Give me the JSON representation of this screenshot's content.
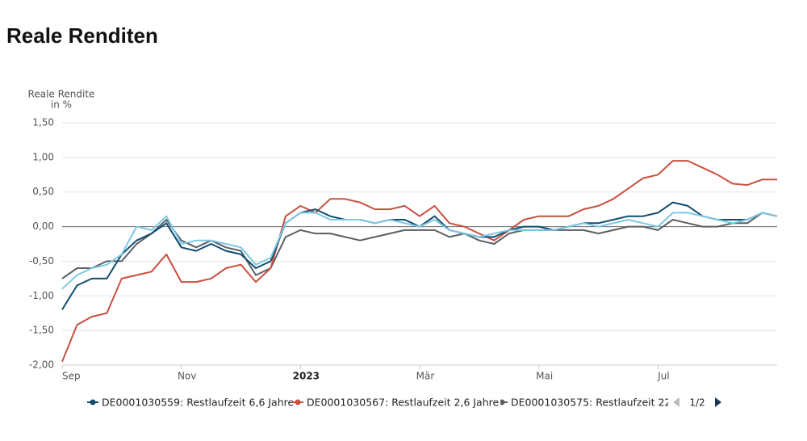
{
  "chart_data": {
    "type": "line",
    "title": "Reale Renditen",
    "ylabel": [
      "Reale Rendite",
      "in %"
    ],
    "categories": [
      "Sep",
      null,
      null,
      null,
      null,
      null,
      null,
      null,
      "Nov",
      null,
      null,
      null,
      null,
      null,
      null,
      null,
      "2023",
      null,
      null,
      null,
      null,
      null,
      null,
      null,
      "Mär",
      null,
      null,
      null,
      null,
      null,
      null,
      null,
      "Mai",
      null,
      null,
      null,
      null,
      null,
      null,
      null,
      "Jul",
      null,
      null,
      null,
      null,
      null,
      null,
      null,
      null
    ],
    "series": [
      {
        "name": "DE0001030559: Restlaufzeit 6,6 Jahre",
        "color": "#0f4c6e",
        "values": [
          -1.2,
          -0.85,
          -0.75,
          -0.75,
          -0.4,
          -0.2,
          -0.1,
          0.05,
          -0.3,
          -0.35,
          -0.25,
          -0.35,
          -0.4,
          -0.6,
          -0.5,
          0.05,
          0.2,
          0.25,
          0.15,
          0.1,
          0.1,
          0.05,
          0.1,
          0.1,
          0.0,
          0.15,
          -0.05,
          -0.1,
          -0.15,
          -0.15,
          -0.05,
          0.0,
          0.0,
          -0.05,
          0.0,
          0.05,
          0.05,
          0.1,
          0.15,
          0.15,
          0.2,
          0.35,
          0.3,
          0.15,
          0.1,
          0.1,
          0.1,
          0.2,
          0.15
        ]
      },
      {
        "name": "DE0001030567: Restlaufzeit 2,6 Jahre",
        "color": "#c8503f",
        "values": [
          -1.95,
          -1.42,
          -1.3,
          -1.25,
          -0.75,
          -0.7,
          -0.65,
          -0.4,
          -0.8,
          -0.8,
          -0.75,
          -0.6,
          -0.55,
          -0.8,
          -0.6,
          0.15,
          0.3,
          0.2,
          0.4,
          0.4,
          0.35,
          0.25,
          0.25,
          0.3,
          0.15,
          0.3,
          0.05,
          0.0,
          -0.1,
          -0.2,
          -0.05,
          0.1,
          0.15,
          0.15,
          0.15,
          0.25,
          0.3,
          0.4,
          0.55,
          0.7,
          0.75,
          0.95,
          0.95,
          0.85,
          0.75,
          0.62,
          0.6,
          0.68,
          0.68
        ]
      },
      {
        "name": "DE0001030575: Restlaufzeit 22,",
        "color": "#5a6064",
        "values": [
          -0.75,
          -0.6,
          -0.6,
          -0.5,
          -0.5,
          -0.25,
          -0.1,
          0.1,
          -0.2,
          -0.3,
          -0.2,
          -0.3,
          -0.35,
          -0.7,
          -0.6,
          -0.15,
          -0.05,
          -0.1,
          -0.1,
          -0.15,
          -0.2,
          -0.15,
          -0.1,
          -0.05,
          -0.05,
          -0.05,
          -0.15,
          -0.1,
          -0.2,
          -0.25,
          -0.1,
          -0.05,
          -0.05,
          -0.05,
          -0.05,
          -0.05,
          -0.1,
          -0.05,
          0.0,
          0.0,
          -0.05,
          0.1,
          0.05,
          0.0,
          0.0,
          0.05,
          0.05,
          0.2,
          0.15
        ]
      },
      {
        "color": "#7ec8e3",
        "values": [
          -0.9,
          -0.7,
          -0.6,
          -0.55,
          -0.4,
          0.0,
          -0.05,
          0.15,
          -0.25,
          -0.2,
          -0.2,
          -0.25,
          -0.3,
          -0.55,
          -0.45,
          0.05,
          0.2,
          0.2,
          0.1,
          0.1,
          0.1,
          0.05,
          0.1,
          0.05,
          0.0,
          0.1,
          -0.05,
          -0.1,
          -0.15,
          -0.1,
          -0.05,
          -0.05,
          -0.05,
          -0.05,
          0.0,
          0.05,
          0.0,
          0.05,
          0.1,
          0.05,
          0.0,
          0.2,
          0.2,
          0.15,
          0.1,
          0.05,
          0.1,
          0.2,
          0.15
        ]
      }
    ],
    "ylim": [
      -2,
      1.5
    ],
    "yticks": [
      {
        "value": -2,
        "label": "-2,00"
      },
      {
        "value": -1.5,
        "label": "-1,50"
      },
      {
        "value": -1,
        "label": "-1,00"
      },
      {
        "value": -0.5,
        "label": "-0,50"
      },
      {
        "value": 0,
        "label": "0,00"
      },
      {
        "value": 0.5,
        "label": "0,50"
      },
      {
        "value": 1,
        "label": "1,00"
      },
      {
        "value": 1.5,
        "label": "1,50"
      }
    ],
    "grid": true,
    "legend_page": "1/2"
  }
}
